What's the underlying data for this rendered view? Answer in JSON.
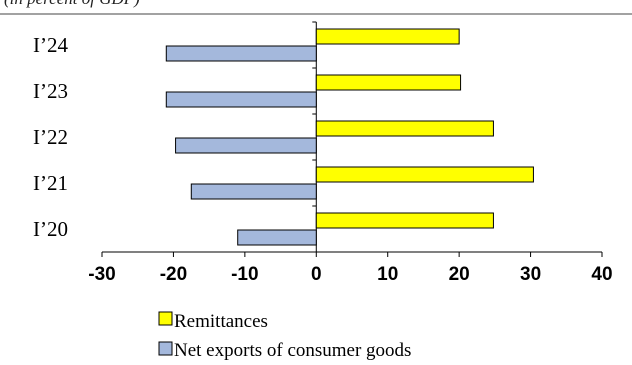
{
  "caption": "(in percent of GDP)",
  "colors": {
    "remittances": "#ffff00",
    "net_exports": "#a4b8dc",
    "outline": "#000000"
  },
  "chart_data": {
    "type": "bar",
    "orientation": "horizontal",
    "categories": [
      "I’24",
      "I’23",
      "I’22",
      "I’21",
      "I’20"
    ],
    "series": [
      {
        "name": "Remittances",
        "values": [
          20.0,
          20.2,
          24.8,
          30.4,
          24.8
        ]
      },
      {
        "name": "Net exports of consumer goods",
        "values": [
          -21.0,
          -21.0,
          -19.7,
          -17.5,
          -11.0
        ]
      }
    ],
    "xlim": [
      -30,
      40
    ],
    "xticks": [
      -30,
      -20,
      -10,
      0,
      10,
      20,
      30,
      40
    ],
    "grid": false,
    "legend_position": "bottom"
  }
}
